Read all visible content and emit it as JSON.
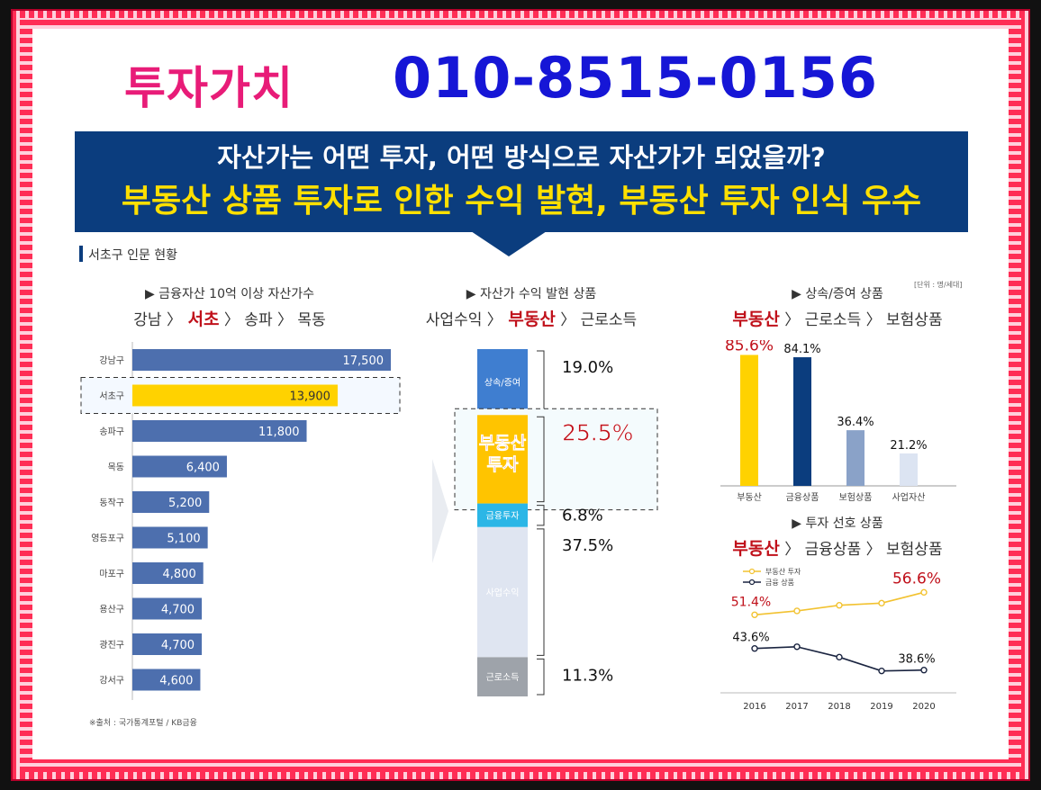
{
  "header": {
    "title": "투자가치",
    "phone": "010-8515-0156"
  },
  "banner": {
    "line1": "자산가는 어떤 투자, 어떤 방식으로 자산가가 되었을까?",
    "line2": "부동산 상품 투자로 인한 수익 발현, 부동산 투자 인식 우수"
  },
  "section_title": "서초구 인문 현황",
  "unit_note": "[단위 : 명/세대]",
  "source_note": "※출처 : 국가통계포털 / KB금융",
  "panel_left": {
    "subtitle": "▶ 금융자산 10억 이상 자산가수",
    "rank": [
      "강남",
      "서초",
      "송파",
      "목동"
    ],
    "highlight": "서초"
  },
  "panel_mid": {
    "subtitle": "▶ 자산가 수익 발현 상품",
    "rank": [
      "사업수익",
      "부동산",
      "근로소득"
    ],
    "highlight": "부동산"
  },
  "panel_right_top": {
    "subtitle": "▶ 상속/증여 상품",
    "rank": [
      "부동산",
      "근로소득",
      "보험상품"
    ],
    "highlight": "부동산"
  },
  "panel_right_bottom": {
    "subtitle": "▶ 투자 선호 상품",
    "rank": [
      "부동산",
      "금융상품",
      "보험상품"
    ],
    "highlight": "부동산"
  },
  "chart_data": [
    {
      "type": "bar",
      "orientation": "horizontal",
      "categories": [
        "강남구",
        "서초구",
        "송파구",
        "목동",
        "동작구",
        "영등포구",
        "마포구",
        "용산구",
        "광진구",
        "강서구"
      ],
      "values": [
        17500,
        13900,
        11800,
        6400,
        5200,
        5100,
        4800,
        4700,
        4700,
        4600
      ],
      "value_labels": [
        "17,500",
        "13,900",
        "11,800",
        "6,400",
        "5,200",
        "5,100",
        "4,800",
        "4,700",
        "4,700",
        "4,600"
      ],
      "highlight_index": 1,
      "colors": {
        "bar": "#4d6fae",
        "highlight": "#ffd200",
        "highlight_text": "#333333"
      },
      "xlim": [
        0,
        17500
      ]
    },
    {
      "type": "bar",
      "orientation": "stacked-vertical",
      "segments": [
        {
          "name": "상속/증여",
          "value": 19.0,
          "label": "19.0%",
          "color": "#3f7ed0"
        },
        {
          "name": "부동산 투자",
          "value": 25.5,
          "label": "25.5%",
          "color": "#ffc400"
        },
        {
          "name": "금융투자",
          "value": 6.8,
          "label": "6.8%",
          "color": "#2bb6e6"
        },
        {
          "name": "사업수익",
          "value": 37.5,
          "label": "37.5%",
          "color": "#dfe5f1"
        },
        {
          "name": "근로소득",
          "value": 11.3,
          "label": "11.3%",
          "color": "#9ea3aa"
        }
      ],
      "highlight_segment": "부동산 투자"
    },
    {
      "type": "bar",
      "categories": [
        "부동산",
        "금융상품",
        "보험상품",
        "사업자산"
      ],
      "values": [
        85.6,
        84.1,
        36.4,
        21.2
      ],
      "value_labels": [
        "85.6%",
        "84.1%",
        "36.4%",
        "21.2%"
      ],
      "colors": [
        "#ffd200",
        "#0b3d7e",
        "#8aa2c8",
        "#dce4f2"
      ],
      "ylim": [
        0,
        100
      ]
    },
    {
      "type": "line",
      "x": [
        "2016",
        "2017",
        "2018",
        "2019",
        "2020"
      ],
      "series": [
        {
          "name": "부동산 투자",
          "values": [
            51.4,
            52.3,
            53.6,
            54.1,
            56.6
          ],
          "color": "#f2c230"
        },
        {
          "name": "금융 상품",
          "values": [
            43.6,
            44.0,
            41.6,
            38.4,
            38.6
          ],
          "color": "#1a2440"
        }
      ],
      "point_labels": [
        {
          "series": 0,
          "index": 0,
          "text": "51.4%"
        },
        {
          "series": 0,
          "index": 4,
          "text": "56.6%"
        },
        {
          "series": 1,
          "index": 0,
          "text": "43.6%"
        },
        {
          "series": 1,
          "index": 4,
          "text": "38.6%"
        }
      ],
      "legend": "top-left",
      "ylim": [
        35,
        60
      ]
    }
  ]
}
